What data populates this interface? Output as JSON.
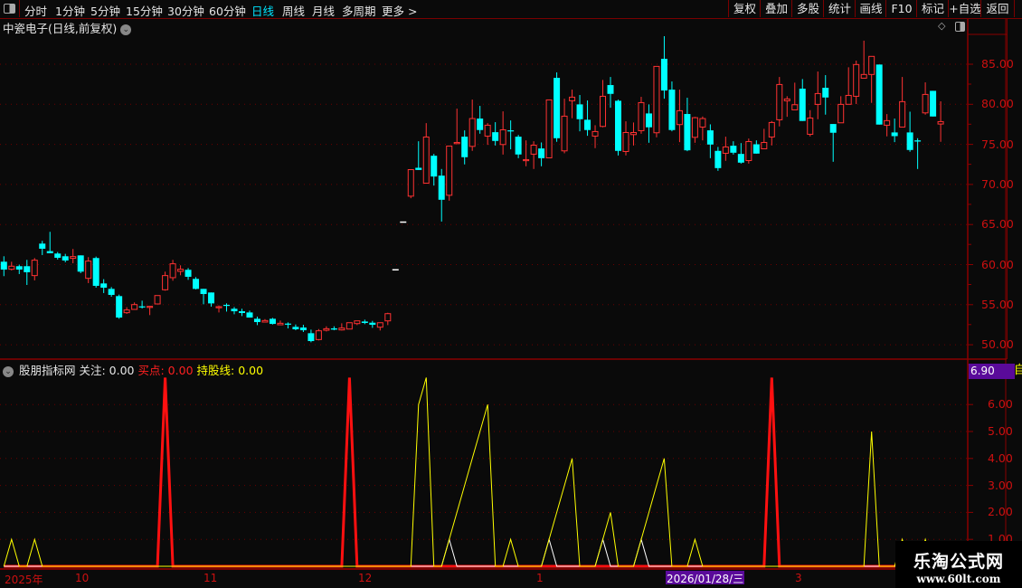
{
  "toolbar": {
    "periods": [
      "分时",
      "1分钟",
      "5分钟",
      "15分钟",
      "30分钟",
      "60分钟",
      "日线",
      "周线",
      "月线",
      "多周期",
      "更多 >"
    ],
    "active_period": "日线",
    "buttons": [
      "复权",
      "叠加",
      "多股",
      "统计",
      "画线",
      "F10",
      "标记",
      "+自选",
      "返回"
    ]
  },
  "chart": {
    "title": "中瓷电子(日线,前复权)",
    "colors": {
      "up": "#ff3232",
      "down": "#00ffff",
      "flat": "#ffffff",
      "axis": "#cc1010",
      "grid": "#6a0000"
    },
    "price_axis": [
      "85.00",
      "80.00",
      "75.00",
      "70.00",
      "65.00",
      "60.00",
      "55.00",
      "50.00"
    ],
    "candles": [
      [
        60.36,
        61.04,
        58.56,
        59.38
      ],
      [
        59.42,
        60.36,
        59.27,
        59.8
      ],
      [
        59.8,
        60.0,
        58.82,
        59.38
      ],
      [
        59.8,
        60.59,
        57.46,
        59.05
      ],
      [
        58.63,
        60.82,
        58.03,
        60.55
      ],
      [
        62.62,
        62.96,
        61.19,
        61.98
      ],
      [
        61.68,
        64.09,
        61.42,
        61.42
      ],
      [
        61.38,
        61.57,
        60.63,
        60.85
      ],
      [
        61.04,
        61.34,
        60.29,
        60.51
      ],
      [
        60.78,
        61.95,
        60.17,
        61.0
      ],
      [
        61.15,
        61.15,
        58.93,
        59.12
      ],
      [
        58.29,
        60.93,
        57.69,
        60.44
      ],
      [
        60.82,
        61.0,
        57.12,
        57.35
      ],
      [
        57.65,
        58.18,
        56.45,
        57.12
      ],
      [
        56.97,
        57.2,
        55.99,
        56.22
      ],
      [
        56.07,
        56.26,
        53.24,
        53.39
      ],
      [
        54.0,
        54.68,
        53.85,
        54.34
      ],
      [
        54.41,
        55.28,
        54.37,
        55.01
      ],
      [
        54.79,
        55.5,
        54.52,
        54.71
      ],
      [
        54.68,
        54.83,
        53.7,
        54.79
      ],
      [
        55.09,
        56.14,
        55.09,
        56.14
      ],
      [
        56.86,
        59.12,
        56.75,
        58.63
      ],
      [
        58.37,
        60.59,
        57.99,
        60.1
      ],
      [
        59.16,
        59.91,
        58.67,
        59.42
      ],
      [
        59.35,
        59.57,
        58.1,
        58.48
      ],
      [
        58.22,
        58.44,
        56.9,
        56.97
      ],
      [
        56.97,
        56.97,
        55.05,
        56.33
      ],
      [
        56.52,
        56.52,
        54.75,
        55.16
      ],
      [
        54.7,
        54.9,
        54.03,
        54.75
      ],
      [
        54.98,
        55.16,
        54.14,
        54.9
      ],
      [
        54.49,
        54.71,
        53.81,
        54.18
      ],
      [
        54.18,
        54.49,
        53.58,
        53.96
      ],
      [
        54.03,
        54.26,
        53.39,
        53.39
      ],
      [
        53.24,
        53.51,
        52.45,
        52.83
      ],
      [
        52.83,
        53.2,
        52.83,
        53.02
      ],
      [
        53.24,
        53.35,
        52.53,
        52.6
      ],
      [
        52.49,
        53.02,
        52.49,
        52.68
      ],
      [
        52.64,
        52.79,
        52.04,
        52.53
      ],
      [
        52.23,
        52.53,
        51.81,
        51.93
      ],
      [
        52.15,
        52.49,
        51.59,
        51.81
      ],
      [
        51.44,
        51.89,
        50.31,
        50.46
      ],
      [
        50.65,
        51.96,
        50.54,
        51.74
      ],
      [
        51.81,
        52.3,
        51.66,
        52.0
      ],
      [
        52.04,
        52.3,
        51.81,
        51.89
      ],
      [
        51.85,
        52.68,
        51.78,
        52.08
      ],
      [
        51.96,
        52.75,
        51.96,
        52.75
      ],
      [
        52.64,
        52.98,
        52.45,
        52.98
      ],
      [
        52.9,
        53.13,
        52.57,
        52.72
      ],
      [
        52.75,
        52.98,
        52.11,
        52.49
      ],
      [
        52.19,
        52.75,
        51.78,
        52.75
      ],
      [
        52.98,
        53.99,
        52.45,
        53.88
      ],
      [
        59.35,
        59.35,
        59.35,
        59.35
      ],
      [
        65.3,
        65.3,
        65.3,
        65.3
      ],
      [
        68.54,
        71.85,
        68.28,
        71.85
      ],
      [
        72.08,
        75.39,
        71.81,
        71.81
      ],
      [
        70.16,
        77.65,
        70.16,
        75.92
      ],
      [
        73.58,
        73.81,
        69.86,
        70.99
      ],
      [
        71.1,
        71.93,
        65.37,
        68.09
      ],
      [
        68.65,
        74.79,
        67.97,
        74.79
      ],
      [
        75.09,
        79.46,
        75.09,
        75.24
      ],
      [
        75.96,
        76.75,
        72.5,
        73.4
      ],
      [
        74.75,
        80.59,
        74.19,
        78.22
      ],
      [
        78.22,
        79.8,
        76.33,
        76.79
      ],
      [
        76.03,
        77.65,
        74.94,
        77.39
      ],
      [
        76.52,
        77.77,
        74.86,
        75.43
      ],
      [
        74.98,
        79.12,
        73.73,
        76.82
      ],
      [
        76.75,
        77.99,
        74.38,
        76.67
      ],
      [
        75.96,
        76.18,
        73.28,
        73.74
      ],
      [
        73.06,
        75.5,
        72.27,
        73.1
      ],
      [
        73.78,
        75.39,
        71.93,
        74.9
      ],
      [
        74.49,
        75.24,
        72.27,
        73.28
      ],
      [
        73.32,
        80.55,
        73.32,
        80.55
      ],
      [
        83.3,
        83.98,
        75.32,
        75.77
      ],
      [
        74.19,
        80.7,
        73.89,
        78.52
      ],
      [
        80.44,
        81.83,
        78.26,
        80.89
      ],
      [
        79.99,
        81.16,
        76.63,
        78.14
      ],
      [
        78.07,
        80.48,
        76.07,
        76.79
      ],
      [
        76.03,
        77.39,
        74.53,
        76.6
      ],
      [
        77.24,
        83.04,
        77.13,
        81.0
      ],
      [
        82.4,
        83.41,
        79.57,
        81.3
      ],
      [
        80.44,
        80.59,
        73.62,
        74.19
      ],
      [
        74.11,
        77.88,
        73.62,
        76.48
      ],
      [
        76.22,
        77.73,
        74.86,
        76.48
      ],
      [
        76.71,
        80.93,
        76.33,
        80.21
      ],
      [
        78.86,
        79.99,
        75.2,
        77.13
      ],
      [
        76.45,
        84.73,
        75.88,
        84.73
      ],
      [
        85.68,
        88.5,
        80.7,
        81.72
      ],
      [
        81.83,
        82.85,
        76.63,
        76.79
      ],
      [
        77.47,
        81.83,
        75.28,
        79.2
      ],
      [
        78.79,
        80.82,
        74.15,
        74.26
      ],
      [
        75.88,
        78.44,
        75.2,
        78.33
      ],
      [
        77.16,
        78.48,
        75.5,
        78.22
      ],
      [
        76.75,
        77.5,
        73.28,
        74.98
      ],
      [
        74.19,
        74.68,
        71.7,
        72.04
      ],
      [
        73.89,
        75.96,
        72.95,
        74.68
      ],
      [
        74.83,
        75.39,
        73.73,
        73.96
      ],
      [
        73.81,
        75.16,
        72.6,
        72.72
      ],
      [
        72.98,
        75.73,
        72.6,
        75.35
      ],
      [
        75.01,
        75.5,
        73.85,
        73.85
      ],
      [
        74.45,
        76.94,
        74.45,
        75.24
      ],
      [
        75.92,
        77.92,
        74.87,
        77.73
      ],
      [
        78.07,
        83.41,
        77.24,
        82.47
      ],
      [
        80.44,
        81.01,
        78.44,
        80.67
      ],
      [
        79.31,
        82.7,
        79.31,
        79.95
      ],
      [
        81.95,
        83.15,
        77.92,
        77.92
      ],
      [
        76.26,
        79.27,
        75.99,
        78.29
      ],
      [
        79.99,
        84.09,
        78.14,
        81.34
      ],
      [
        82.06,
        83.64,
        78.71,
        80.85
      ],
      [
        77.54,
        77.54,
        72.83,
        76.45
      ],
      [
        77.69,
        81.01,
        77.69,
        79.99
      ],
      [
        80.0,
        84.62,
        80.0,
        81.11
      ],
      [
        81.0,
        85.45,
        80.03,
        84.96
      ],
      [
        83.26,
        87.94,
        83.26,
        83.72
      ],
      [
        83.72,
        85.98,
        80.18,
        85.98
      ],
      [
        84.96,
        84.96,
        77.47,
        77.47
      ],
      [
        77.39,
        78.78,
        76.0,
        77.96
      ],
      [
        76.49,
        78.22,
        75.28,
        76.03
      ],
      [
        77.16,
        83.41,
        77.16,
        80.33
      ],
      [
        76.49,
        79.08,
        74.08,
        74.3
      ],
      [
        75.5,
        75.77,
        71.93,
        75.35
      ],
      [
        78.93,
        82.74,
        78.71,
        81.23
      ],
      [
        81.68,
        81.68,
        78.48,
        78.48
      ],
      [
        77.54,
        80.37,
        75.32,
        77.84
      ]
    ]
  },
  "indicator": {
    "name": "股朋指标网",
    "focus_label": "关注: 0.00",
    "buy_label": "买点: 0.00",
    "hold_label": "持股线: 0.00",
    "cursor_value": "6.90",
    "side_char": "自",
    "axis": [
      "6.00",
      "5.00",
      "4.00",
      "3.00",
      "2.00",
      "1.00"
    ],
    "colors": {
      "buy": "#ff1010",
      "hold": "#ffff00",
      "focus": "#ffffff"
    },
    "buy_spikes": {
      "21": 7,
      "45": 7,
      "100": 7
    },
    "hold": [
      0,
      1,
      0,
      0,
      1,
      0,
      0,
      0,
      0,
      0,
      0,
      0,
      0,
      0,
      0,
      0,
      0,
      0,
      0,
      0,
      0,
      0,
      0,
      0,
      0,
      0,
      0,
      0,
      0,
      0,
      0,
      0,
      0,
      0,
      0,
      0,
      0,
      0,
      0,
      0,
      0,
      0,
      0,
      0,
      0,
      0,
      0,
      0,
      0,
      0,
      0,
      0,
      0,
      0,
      6,
      7,
      0,
      0,
      1,
      2,
      3,
      4,
      5,
      6,
      0,
      0,
      1,
      0,
      0,
      0,
      0,
      1,
      2,
      3,
      4,
      0,
      0,
      0,
      1,
      2,
      0,
      0,
      0,
      1,
      2,
      3,
      4,
      0,
      0,
      0,
      1,
      0,
      0,
      0,
      0,
      0,
      0,
      0,
      0,
      0,
      0,
      0,
      0,
      0,
      0,
      0,
      0,
      0,
      0,
      0,
      0,
      0,
      0,
      5,
      0,
      0,
      0,
      1,
      0,
      0,
      1,
      0,
      0
    ],
    "focus_spikes": {
      "58": 1,
      "71": 1,
      "78": 1,
      "83": 1
    }
  },
  "time_axis": {
    "labels": [
      "2025年",
      "10",
      "11",
      "12",
      "1",
      "3"
    ],
    "cursor_date": "2026/01/28/三"
  },
  "watermark": {
    "line1": "乐淘公式网",
    "line2": "www.60lt.com"
  }
}
